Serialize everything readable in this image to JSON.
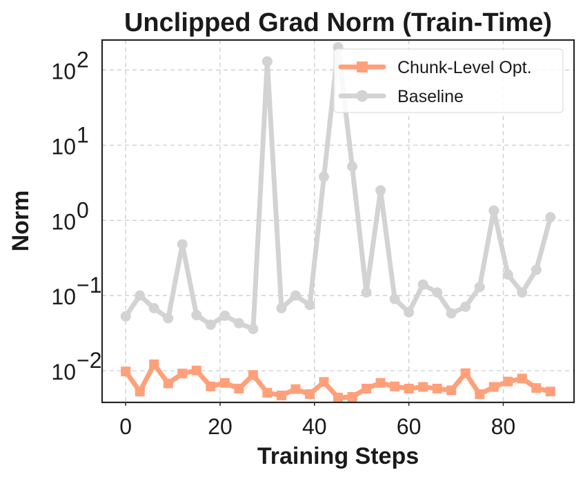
{
  "chart_data": {
    "type": "line",
    "title": "Unclipped Grad Norm (Train-Time)",
    "xlabel": "Training Steps",
    "ylabel": "Norm",
    "yscale": "log",
    "xlim": [
      -5,
      95
    ],
    "ylim": [
      0.0038,
      250
    ],
    "x_ticks": [
      0,
      20,
      40,
      60,
      80
    ],
    "y_ticks": [
      {
        "value": 0.01,
        "base": "10",
        "exp": "−2"
      },
      {
        "value": 0.1,
        "base": "10",
        "exp": "−1"
      },
      {
        "value": 1,
        "base": "10",
        "exp": "0"
      },
      {
        "value": 10,
        "base": "10",
        "exp": "1"
      },
      {
        "value": 100,
        "base": "10",
        "exp": "2"
      }
    ],
    "grid": true,
    "legend_position": "top-right",
    "x": [
      0,
      3,
      6,
      9,
      12,
      15,
      18,
      21,
      24,
      27,
      30,
      33,
      36,
      39,
      42,
      45,
      48,
      51,
      54,
      57,
      60,
      63,
      66,
      69,
      72,
      75,
      78,
      81,
      84,
      87,
      90
    ],
    "series": [
      {
        "name": "Chunk-Level Opt.",
        "color": "#FFA07A",
        "marker": "square",
        "values": [
          0.0098,
          0.0053,
          0.0122,
          0.0068,
          0.0092,
          0.0101,
          0.0062,
          0.0069,
          0.0058,
          0.0088,
          0.0051,
          0.0047,
          0.0057,
          0.0049,
          0.0071,
          0.0044,
          0.0045,
          0.0058,
          0.0069,
          0.0062,
          0.0058,
          0.0061,
          0.0058,
          0.0055,
          0.0093,
          0.0049,
          0.0061,
          0.0072,
          0.0079,
          0.0059,
          0.0053
        ]
      },
      {
        "name": "Baseline",
        "color": "#D3D3D3",
        "marker": "circle",
        "values": [
          0.053,
          0.1,
          0.068,
          0.05,
          0.48,
          0.055,
          0.041,
          0.054,
          0.043,
          0.036,
          130,
          0.068,
          0.1,
          0.075,
          3.8,
          200,
          5.2,
          0.11,
          2.5,
          0.09,
          0.06,
          0.14,
          0.11,
          0.058,
          0.071,
          0.13,
          1.35,
          0.19,
          0.11,
          0.22,
          1.1
        ]
      }
    ]
  }
}
